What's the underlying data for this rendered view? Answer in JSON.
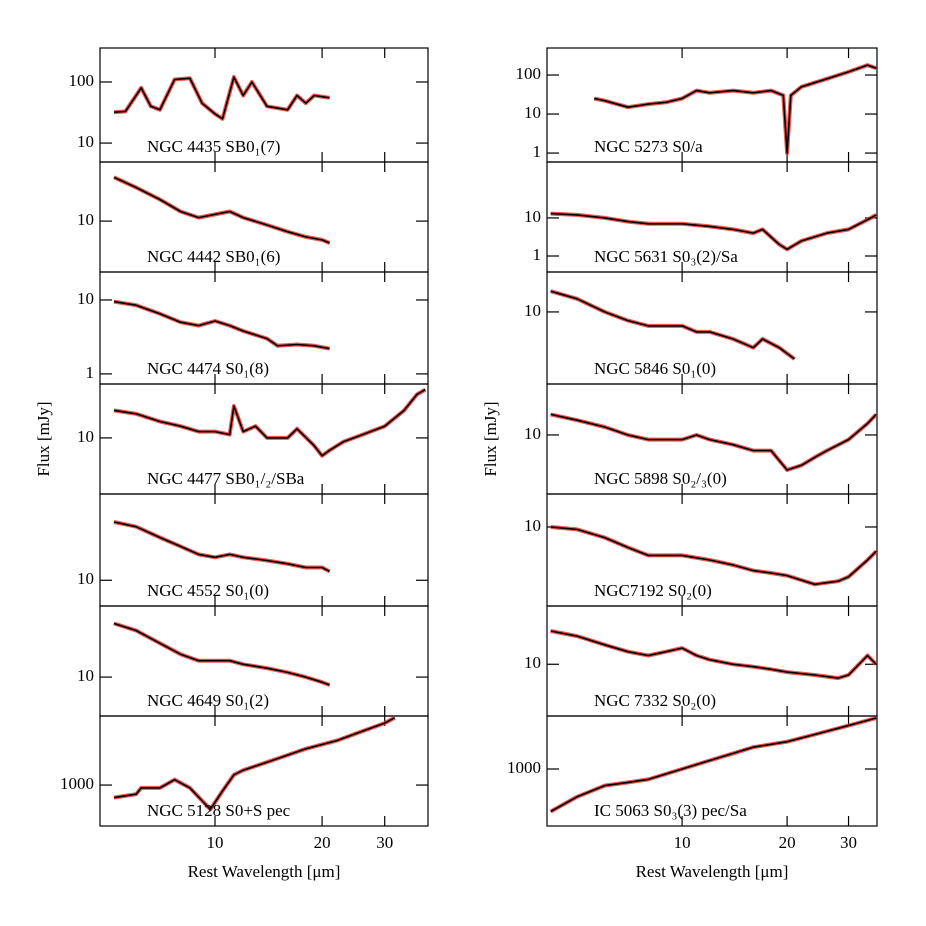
{
  "chart_data": [
    {
      "type": "line",
      "label": "NGC 4435 SB0₁(7)",
      "x": [
        5.2,
        5.6,
        6.2,
        6.6,
        7.0,
        7.7,
        8.5,
        9.2,
        10.0,
        10.5,
        11.3,
        12.0,
        12.7,
        14.0,
        16.0,
        17.0,
        18.0,
        19.0,
        21.0
      ],
      "values": [
        32,
        33,
        80,
        40,
        35,
        110,
        115,
        45,
        30,
        25,
        120,
        60,
        100,
        40,
        35,
        60,
        45,
        60,
        55
      ],
      "xlim": [
        4.75,
        39.7
      ],
      "ylim": [
        4.9,
        360
      ],
      "xticks": [
        10,
        20,
        30
      ],
      "yticks": [
        10,
        100
      ],
      "xscale": "log",
      "yscale": "log",
      "color": "#000000",
      "error_color": "#e8382f"
    },
    {
      "type": "line",
      "label": "NGC 4442 SB0₁(6)",
      "x": [
        5.2,
        6.0,
        7.0,
        8.0,
        9.0,
        10.0,
        11.0,
        12.0,
        14.0,
        16.0,
        18.0,
        20.0,
        21.0
      ],
      "values": [
        33,
        25,
        18,
        13,
        11,
        12,
        13,
        11,
        9,
        7.5,
        6.5,
        6,
        5.5
      ],
      "xlim": [
        4.75,
        39.7
      ],
      "ylim": [
        2.5,
        50
      ],
      "xticks": [
        10,
        20,
        30
      ],
      "yticks": [
        10
      ],
      "xscale": "log",
      "yscale": "log",
      "color": "#000000",
      "error_color": "#e8382f"
    },
    {
      "type": "line",
      "label": "NGC 4474 S0₁(8)",
      "x": [
        5.2,
        6.0,
        7.0,
        8.0,
        9.0,
        10.0,
        11.0,
        12.0,
        14.0,
        15.0,
        17.0,
        19.0,
        21.0
      ],
      "values": [
        9.5,
        8.5,
        6.5,
        5,
        4.5,
        5.2,
        4.5,
        3.8,
        3,
        2.4,
        2.5,
        2.4,
        2.2
      ],
      "xlim": [
        4.75,
        39.7
      ],
      "ylim": [
        0.73,
        23.9
      ],
      "xticks": [
        10,
        20,
        30
      ],
      "yticks": [
        1,
        10
      ],
      "xscale": "log",
      "yscale": "log",
      "color": "#000000",
      "error_color": "#e8382f"
    },
    {
      "type": "line",
      "label": "NGC 4477 SB0₁/₂/SBa",
      "ylabel": "Flux [mJy]",
      "x": [
        5.2,
        6.0,
        7.0,
        8.0,
        9.0,
        10.0,
        11.0,
        11.3,
        12.0,
        13.0,
        14.0,
        16.0,
        17.0,
        19.0,
        20.0,
        21.0,
        23.0,
        26.0,
        30.0,
        34.0,
        37.0,
        39.0
      ],
      "values": [
        22,
        20,
        16,
        14,
        12,
        12,
        11,
        25,
        12,
        14,
        10,
        10,
        13,
        8,
        6,
        7,
        9,
        11,
        14,
        22,
        35,
        40
      ],
      "xlim": [
        4.75,
        39.7
      ],
      "ylim": [
        2,
        47
      ],
      "xticks": [
        10,
        20,
        30
      ],
      "yticks": [
        10
      ],
      "xscale": "log",
      "yscale": "log",
      "color": "#000000",
      "error_color": "#e8382f"
    },
    {
      "type": "line",
      "label": "NGC 4552 S0₁(0)",
      "x": [
        5.2,
        6.0,
        7.0,
        8.0,
        9.0,
        10.0,
        11.0,
        12.0,
        14.0,
        16.0,
        18.0,
        20.0,
        21.0
      ],
      "values": [
        33,
        30,
        24,
        20,
        17,
        16,
        17,
        16,
        15,
        14,
        13,
        13,
        12
      ],
      "xlim": [
        4.75,
        39.7
      ],
      "ylim": [
        5.9,
        58.6
      ],
      "xticks": [
        10,
        20,
        30
      ],
      "yticks": [
        10
      ],
      "xscale": "log",
      "yscale": "log",
      "color": "#000000",
      "error_color": "#e8382f"
    },
    {
      "type": "line",
      "label": "NGC 4649 S0₁(2)",
      "x": [
        5.2,
        6.0,
        7.0,
        8.0,
        9.0,
        10.0,
        11.0,
        12.0,
        14.0,
        16.0,
        18.0,
        20.0,
        21.0
      ],
      "values": [
        30,
        26,
        20,
        16,
        14,
        14,
        14,
        13,
        12,
        11,
        10,
        9,
        8.5
      ],
      "xlim": [
        4.75,
        39.7
      ],
      "ylim": [
        4.5,
        43
      ],
      "xticks": [
        10,
        20,
        30
      ],
      "yticks": [
        10
      ],
      "xscale": "log",
      "yscale": "log",
      "color": "#000000",
      "error_color": "#e8382f"
    },
    {
      "type": "line",
      "label": "NGC 5128 S0+S pec",
      "xlabel": "Rest Wavelength [μm]",
      "x": [
        5.2,
        6.0,
        6.2,
        7.0,
        7.7,
        8.5,
        9.7,
        10.5,
        11.3,
        12.0,
        14.0,
        16.0,
        18.0,
        22.0,
        26.0,
        30.0,
        32.0
      ],
      "values": [
        800,
        850,
        950,
        950,
        1100,
        950,
        650,
        900,
        1200,
        1300,
        1500,
        1700,
        1900,
        2200,
        2600,
        3000,
        3300
      ],
      "xlim": [
        4.75,
        39.7
      ],
      "ylim": [
        484,
        3400
      ],
      "xticks": [
        10,
        20,
        30
      ],
      "yticks": [
        1000
      ],
      "xscale": "log",
      "yscale": "log",
      "color": "#000000",
      "error_color": "#e8382f"
    },
    {
      "type": "line",
      "label": "NGC 5273 S0/a",
      "x": [
        5.6,
        6.0,
        7.0,
        8.0,
        9.0,
        10.0,
        11.0,
        12.0,
        14.0,
        16.0,
        18.0,
        19.5,
        20.0,
        20.5,
        22.0,
        26.0,
        30.0,
        34.0,
        36.0
      ],
      "values": [
        25,
        22,
        15,
        18,
        20,
        25,
        40,
        35,
        40,
        35,
        40,
        30,
        1,
        30,
        50,
        80,
        120,
        180,
        150
      ],
      "xlim": [
        4.1,
        36.2
      ],
      "ylim": [
        0.59,
        493
      ],
      "xticks": [
        10,
        20,
        30
      ],
      "yticks": [
        1,
        10,
        100
      ],
      "xscale": "log",
      "yscale": "log",
      "color": "#000000",
      "error_color": "#e8382f"
    },
    {
      "type": "line",
      "label": "NGC 5631 S0₃(2)/Sa",
      "x": [
        4.2,
        5.0,
        6.0,
        7.0,
        8.0,
        10.0,
        12.0,
        14.0,
        16.0,
        17.0,
        19.0,
        20.0,
        22.0,
        26.0,
        30.0,
        34.0,
        36.0
      ],
      "values": [
        13,
        12,
        10,
        8,
        7,
        7,
        6,
        5,
        4,
        5,
        2,
        1.5,
        2.5,
        4,
        5,
        9,
        12
      ],
      "xlim": [
        4.1,
        36.2
      ],
      "ylim": [
        0.38,
        295
      ],
      "xticks": [
        10,
        20,
        30
      ],
      "yticks": [
        1,
        10
      ],
      "xscale": "log",
      "yscale": "log",
      "color": "#000000",
      "error_color": "#e8382f"
    },
    {
      "type": "line",
      "label": "NGC 5846 S0₁(0)",
      "x": [
        4.2,
        5.0,
        6.0,
        7.0,
        8.0,
        9.0,
        10.0,
        11.0,
        12.0,
        14.0,
        16.0,
        17.0,
        19.0,
        21.0
      ],
      "values": [
        17,
        14,
        10,
        8,
        7,
        7,
        7,
        6,
        6,
        5,
        4,
        5,
        4,
        3
      ],
      "xlim": [
        4.1,
        36.2
      ],
      "ylim": [
        1.58,
        27.8
      ],
      "xticks": [
        10,
        20,
        30
      ],
      "yticks": [
        10
      ],
      "xscale": "log",
      "yscale": "log",
      "color": "#000000",
      "error_color": "#e8382f"
    },
    {
      "type": "line",
      "label": "NGC 5898 S0₂/₃(0)",
      "ylabel": "Flux [mJy]",
      "x": [
        4.2,
        5.0,
        6.0,
        7.0,
        8.0,
        9.0,
        10.0,
        11.0,
        12.0,
        14.0,
        16.0,
        18.0,
        20.0,
        22.0,
        24.0,
        26.0,
        30.0,
        34.0,
        36.0
      ],
      "values": [
        16,
        14,
        12,
        10,
        9,
        9,
        9,
        10,
        9,
        8,
        7,
        7,
        4.5,
        5,
        6,
        7,
        9,
        13,
        16
      ],
      "xlim": [
        4.1,
        36.2
      ],
      "ylim": [
        2.6,
        32
      ],
      "xticks": [
        10,
        20,
        30
      ],
      "yticks": [
        10
      ],
      "xscale": "log",
      "yscale": "log",
      "color": "#000000",
      "error_color": "#e8382f"
    },
    {
      "type": "line",
      "label": "NGC7192 S0₂(0)",
      "x": [
        4.2,
        5.0,
        6.0,
        7.0,
        8.0,
        9.0,
        10.0,
        12.0,
        14.0,
        16.0,
        18.0,
        20.0,
        24.0,
        28.0,
        30.0,
        34.0,
        36.0
      ],
      "values": [
        10,
        9.5,
        8,
        6.5,
        5.5,
        5.5,
        5.5,
        5,
        4.5,
        4,
        3.8,
        3.6,
        3,
        3.2,
        3.5,
        5,
        6
      ],
      "xlim": [
        4.1,
        36.2
      ],
      "ylim": [
        1.9,
        20
      ],
      "xticks": [
        10,
        20,
        30
      ],
      "yticks": [
        10
      ],
      "xscale": "log",
      "yscale": "log",
      "color": "#000000",
      "error_color": "#e8382f"
    },
    {
      "type": "line",
      "label": "NGC 7332 S0₂(0)",
      "x": [
        4.2,
        5.0,
        6.0,
        7.0,
        8.0,
        9.0,
        10.0,
        11.0,
        12.0,
        14.0,
        16.0,
        18.0,
        20.0,
        24.0,
        28.0,
        30.0,
        34.0,
        36.0
      ],
      "values": [
        20,
        18,
        15,
        13,
        12,
        13,
        14,
        12,
        11,
        10,
        9.5,
        9,
        8.5,
        8,
        7.5,
        8,
        12,
        10
      ],
      "xlim": [
        4.1,
        36.2
      ],
      "ylim": [
        3.4,
        33.7
      ],
      "xticks": [
        10,
        20,
        30
      ],
      "yticks": [
        10
      ],
      "xscale": "log",
      "yscale": "log",
      "color": "#000000",
      "error_color": "#e8382f"
    },
    {
      "type": "line",
      "label": "IC 5063 S0₃(3) pec/Sa",
      "xlabel": "Rest Wavelength [μm]",
      "x": [
        4.2,
        5.0,
        6.0,
        7.0,
        8.0,
        10.0,
        12.0,
        14.0,
        16.0,
        20.0,
        24.0,
        28.0,
        32.0,
        36.0
      ],
      "values": [
        400,
        550,
        700,
        750,
        800,
        1000,
        1200,
        1400,
        1600,
        1800,
        2100,
        2400,
        2700,
        3000
      ],
      "xlim": [
        4.1,
        36.2
      ],
      "ylim": [
        293,
        3130
      ],
      "xticks": [
        10,
        20,
        30
      ],
      "yticks": [
        1000
      ],
      "xscale": "log",
      "yscale": "log",
      "color": "#000000",
      "error_color": "#e8382f"
    }
  ]
}
